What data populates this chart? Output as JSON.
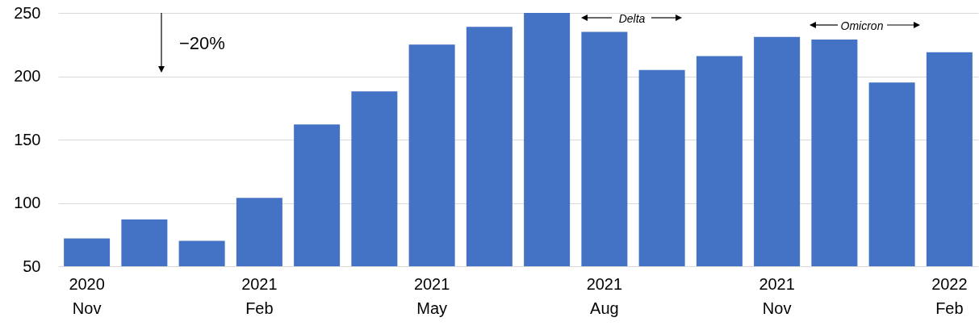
{
  "chart_data": {
    "type": "bar",
    "categories": [
      "2020\nNov",
      null,
      null,
      "2021\nFeb",
      null,
      null,
      "2021\nMay",
      null,
      null,
      "2021\nAug",
      null,
      null,
      "2021\nNov",
      null,
      null,
      "2022\nFeb"
    ],
    "values": [
      72,
      87,
      70,
      104,
      162,
      188,
      225,
      239,
      250,
      235,
      205,
      216,
      231,
      229,
      195,
      219
    ],
    "color": "#4472c4",
    "ylim": [
      50,
      250
    ],
    "yticks": [
      50,
      100,
      150,
      200,
      250
    ],
    "grid": "y",
    "annotations": [
      "−20%",
      "Delta",
      "Omicron"
    ]
  }
}
